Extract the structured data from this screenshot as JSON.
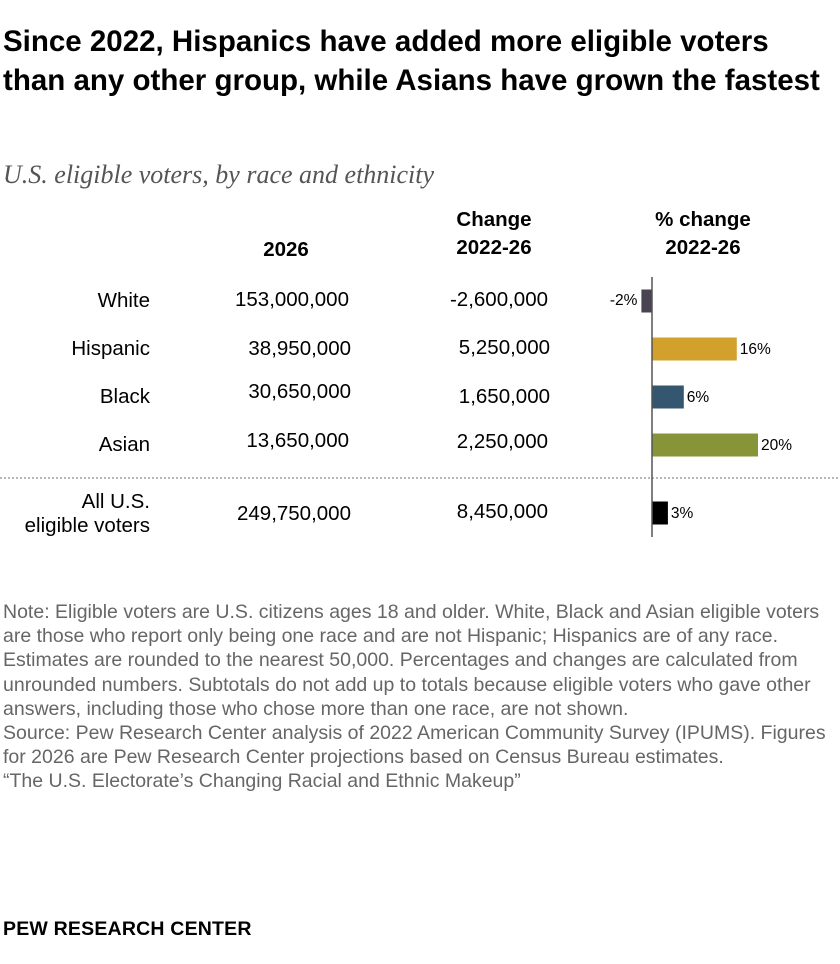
{
  "title": "Since 2022, Hispanics have added more eligible voters than any other group, while Asians have grown the fastest",
  "subtitle": "U.S. eligible voters, by race and ethnicity",
  "columns": {
    "year": "2026",
    "change": [
      "Change",
      "2022-26"
    ],
    "pct_change": [
      "% change",
      "2022-26"
    ]
  },
  "chart_data": {
    "type": "table",
    "rows": [
      {
        "label": [
          "White"
        ],
        "value_2026": "153,000,000",
        "change": "-2,600,000",
        "pct": -2,
        "pct_label": "-2%",
        "color": "#4a4452"
      },
      {
        "label": [
          "Hispanic"
        ],
        "value_2026": "38,950,000",
        "change": "5,250,000",
        "pct": 16,
        "pct_label": "16%",
        "color": "#d1a12c"
      },
      {
        "label": [
          "Black"
        ],
        "value_2026": "30,650,000",
        "change": "1,650,000",
        "pct": 6,
        "pct_label": "6%",
        "color": "#34566f"
      },
      {
        "label": [
          "Asian"
        ],
        "value_2026": "13,650,000",
        "change": "2,250,000",
        "pct": 20,
        "pct_label": "20%",
        "color": "#879538"
      }
    ],
    "total": {
      "label": [
        "All U.S.",
        "eligible voters"
      ],
      "value_2026": "249,750,000",
      "change": "8,450,000",
      "pct": 3,
      "pct_label": "3%",
      "color": "#000000"
    }
  },
  "notes": [
    "Note: Eligible voters are U.S. citizens ages 18 and older. White, Black and Asian eligible voters are those who report only being one race and are not Hispanic; Hispanics are of any race. Estimates are rounded to the nearest 50,000. Percentages and changes are calculated from unrounded numbers. Subtotals do not add up to totals because eligible voters who gave other answers, including those who chose more than one race, are not shown.",
    "Source: Pew Research Center analysis of 2022 American Community Survey (IPUMS). Figures for 2026 are Pew Research Center projections based on Census Bureau estimates.",
    "“The U.S. Electorate’s Changing Racial and Ethnic Makeup”"
  ],
  "source_org": "PEW RESEARCH CENTER"
}
